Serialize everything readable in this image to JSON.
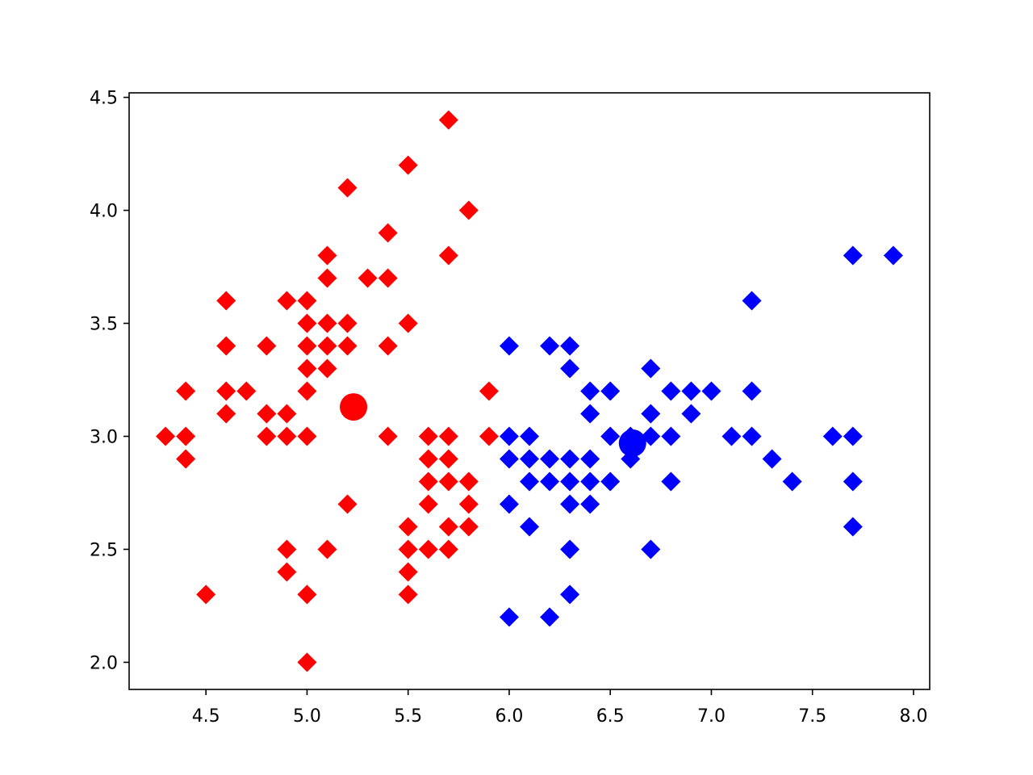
{
  "chart_data": {
    "type": "scatter",
    "title": "",
    "xlabel": "",
    "ylabel": "",
    "xlim": [
      4.12,
      8.08
    ],
    "ylim": [
      1.88,
      4.52
    ],
    "xticks": [
      4.5,
      5.0,
      5.5,
      6.0,
      6.5,
      7.0,
      7.5,
      8.0
    ],
    "xtick_labels": [
      "4.5",
      "5.0",
      "5.5",
      "6.0",
      "6.5",
      "7.0",
      "7.5",
      "8.0"
    ],
    "yticks": [
      2.0,
      2.5,
      3.0,
      3.5,
      4.0,
      4.5
    ],
    "ytick_labels": [
      "2.0",
      "2.5",
      "3.0",
      "3.5",
      "4.0",
      "4.5"
    ],
    "grid": false,
    "series": [
      {
        "color": "#ff0000",
        "marker": "diamond",
        "points": [
          [
            5.7,
            4.4
          ],
          [
            5.5,
            4.2
          ],
          [
            5.2,
            4.1
          ],
          [
            5.8,
            4.0
          ],
          [
            5.4,
            3.9
          ],
          [
            5.1,
            3.8
          ],
          [
            5.7,
            3.8
          ],
          [
            5.1,
            3.7
          ],
          [
            5.3,
            3.7
          ],
          [
            5.4,
            3.7
          ],
          [
            4.6,
            3.6
          ],
          [
            4.9,
            3.6
          ],
          [
            5.0,
            3.6
          ],
          [
            5.0,
            3.5
          ],
          [
            5.1,
            3.5
          ],
          [
            5.2,
            3.5
          ],
          [
            5.5,
            3.5
          ],
          [
            4.6,
            3.4
          ],
          [
            4.8,
            3.4
          ],
          [
            5.0,
            3.4
          ],
          [
            5.1,
            3.4
          ],
          [
            5.2,
            3.4
          ],
          [
            5.4,
            3.4
          ],
          [
            5.0,
            3.3
          ],
          [
            5.1,
            3.3
          ],
          [
            4.4,
            3.2
          ],
          [
            4.6,
            3.2
          ],
          [
            4.7,
            3.2
          ],
          [
            5.0,
            3.2
          ],
          [
            5.9,
            3.2
          ],
          [
            4.6,
            3.1
          ],
          [
            4.8,
            3.1
          ],
          [
            4.9,
            3.1
          ],
          [
            4.3,
            3.0
          ],
          [
            4.4,
            3.0
          ],
          [
            4.8,
            3.0
          ],
          [
            4.9,
            3.0
          ],
          [
            5.0,
            3.0
          ],
          [
            5.4,
            3.0
          ],
          [
            5.6,
            3.0
          ],
          [
            5.7,
            3.0
          ],
          [
            5.9,
            3.0
          ],
          [
            4.4,
            2.9
          ],
          [
            5.6,
            2.9
          ],
          [
            5.7,
            2.9
          ],
          [
            5.6,
            2.8
          ],
          [
            5.7,
            2.8
          ],
          [
            5.8,
            2.8
          ],
          [
            5.2,
            2.7
          ],
          [
            5.6,
            2.7
          ],
          [
            5.8,
            2.7
          ],
          [
            5.5,
            2.6
          ],
          [
            5.7,
            2.6
          ],
          [
            5.8,
            2.6
          ],
          [
            4.9,
            2.5
          ],
          [
            5.1,
            2.5
          ],
          [
            5.5,
            2.5
          ],
          [
            5.6,
            2.5
          ],
          [
            5.7,
            2.5
          ],
          [
            4.9,
            2.4
          ],
          [
            5.5,
            2.4
          ],
          [
            4.5,
            2.3
          ],
          [
            5.0,
            2.3
          ],
          [
            5.5,
            2.3
          ],
          [
            5.0,
            2.0
          ]
        ]
      },
      {
        "color": "#0000ff",
        "marker": "diamond",
        "points": [
          [
            7.7,
            3.8
          ],
          [
            7.9,
            3.8
          ],
          [
            7.2,
            3.6
          ],
          [
            6.0,
            3.4
          ],
          [
            6.2,
            3.4
          ],
          [
            6.3,
            3.4
          ],
          [
            6.3,
            3.3
          ],
          [
            6.7,
            3.3
          ],
          [
            6.4,
            3.2
          ],
          [
            6.5,
            3.2
          ],
          [
            6.8,
            3.2
          ],
          [
            6.9,
            3.2
          ],
          [
            7.0,
            3.2
          ],
          [
            7.2,
            3.2
          ],
          [
            6.4,
            3.1
          ],
          [
            6.7,
            3.1
          ],
          [
            6.9,
            3.1
          ],
          [
            6.0,
            3.0
          ],
          [
            6.1,
            3.0
          ],
          [
            6.5,
            3.0
          ],
          [
            6.6,
            3.0
          ],
          [
            6.7,
            3.0
          ],
          [
            6.8,
            3.0
          ],
          [
            7.1,
            3.0
          ],
          [
            7.2,
            3.0
          ],
          [
            7.6,
            3.0
          ],
          [
            7.7,
            3.0
          ],
          [
            6.0,
            2.9
          ],
          [
            6.1,
            2.9
          ],
          [
            6.2,
            2.9
          ],
          [
            6.3,
            2.9
          ],
          [
            6.4,
            2.9
          ],
          [
            6.6,
            2.9
          ],
          [
            7.3,
            2.9
          ],
          [
            6.1,
            2.8
          ],
          [
            6.2,
            2.8
          ],
          [
            6.3,
            2.8
          ],
          [
            6.4,
            2.8
          ],
          [
            6.5,
            2.8
          ],
          [
            6.8,
            2.8
          ],
          [
            7.4,
            2.8
          ],
          [
            7.7,
            2.8
          ],
          [
            6.0,
            2.7
          ],
          [
            6.3,
            2.7
          ],
          [
            6.4,
            2.7
          ],
          [
            6.1,
            2.6
          ],
          [
            7.7,
            2.6
          ],
          [
            6.3,
            2.5
          ],
          [
            6.7,
            2.5
          ],
          [
            6.3,
            2.3
          ],
          [
            6.0,
            2.2
          ],
          [
            6.2,
            2.2
          ]
        ]
      }
    ],
    "centroids": [
      {
        "color": "#ff0000",
        "marker": "circle",
        "x": 5.23,
        "y": 3.13
      },
      {
        "color": "#0000ff",
        "marker": "circle",
        "x": 6.61,
        "y": 2.97
      }
    ]
  }
}
